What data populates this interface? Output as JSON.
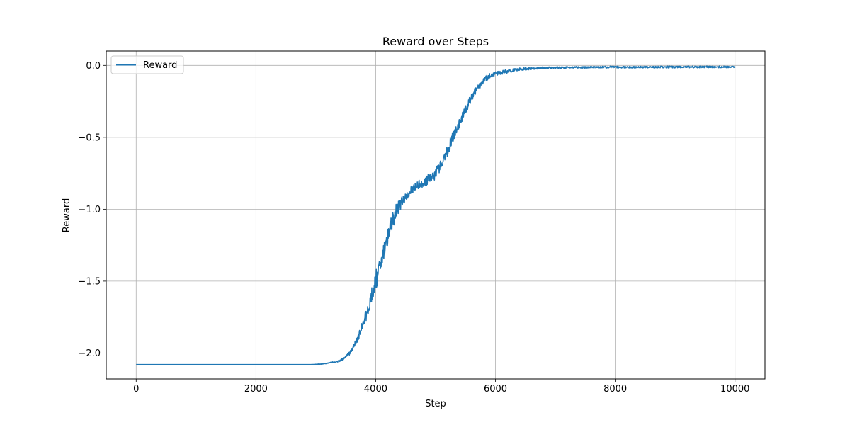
{
  "chart_data": {
    "type": "line",
    "title": "Reward over Steps",
    "xlabel": "Step",
    "ylabel": "Reward",
    "xlim": [
      -500,
      10500
    ],
    "ylim": [
      -2.18,
      0.1
    ],
    "xticks": [
      0,
      2000,
      4000,
      6000,
      8000,
      10000
    ],
    "xtick_labels": [
      "0",
      "2000",
      "4000",
      "6000",
      "8000",
      "10000"
    ],
    "yticks": [
      -2.0,
      -1.5,
      -1.0,
      -0.5,
      0.0
    ],
    "ytick_labels": [
      "−2.0",
      "−1.5",
      "−1.0",
      "−0.5",
      "0.0"
    ],
    "grid": true,
    "legend_position": "top-left",
    "color": "#1f77b4",
    "series": [
      {
        "name": "Reward",
        "x": [
          0,
          500,
          1000,
          1500,
          2000,
          2500,
          2900,
          3100,
          3300,
          3400,
          3500,
          3600,
          3700,
          3800,
          3900,
          4000,
          4100,
          4200,
          4300,
          4400,
          4500,
          4600,
          4700,
          4800,
          4900,
          5000,
          5100,
          5200,
          5300,
          5400,
          5500,
          5600,
          5700,
          5800,
          5900,
          6000,
          6200,
          6400,
          6600,
          6800,
          7000,
          7500,
          8000,
          8500,
          9000,
          9500,
          10000
        ],
        "y": [
          -2.08,
          -2.08,
          -2.08,
          -2.08,
          -2.08,
          -2.08,
          -2.08,
          -2.075,
          -2.06,
          -2.05,
          -2.02,
          -1.97,
          -1.88,
          -1.75,
          -1.62,
          -1.45,
          -1.3,
          -1.12,
          -1.0,
          -0.93,
          -0.88,
          -0.84,
          -0.81,
          -0.79,
          -0.76,
          -0.72,
          -0.65,
          -0.56,
          -0.46,
          -0.37,
          -0.28,
          -0.2,
          -0.14,
          -0.09,
          -0.06,
          -0.045,
          -0.03,
          -0.02,
          -0.015,
          -0.012,
          -0.01,
          -0.008,
          -0.007,
          -0.007,
          -0.006,
          -0.006,
          -0.006
        ],
        "noise": [
          0,
          0,
          0,
          0,
          0,
          0,
          0,
          0.003,
          0.006,
          0.01,
          0.015,
          0.025,
          0.04,
          0.06,
          0.08,
          0.1,
          0.11,
          0.11,
          0.1,
          0.08,
          0.06,
          0.05,
          0.05,
          0.05,
          0.055,
          0.06,
          0.06,
          0.065,
          0.06,
          0.055,
          0.05,
          0.045,
          0.04,
          0.035,
          0.03,
          0.025,
          0.02,
          0.016,
          0.013,
          0.011,
          0.01,
          0.01,
          0.01,
          0.01,
          0.01,
          0.01,
          0.01
        ]
      }
    ]
  }
}
